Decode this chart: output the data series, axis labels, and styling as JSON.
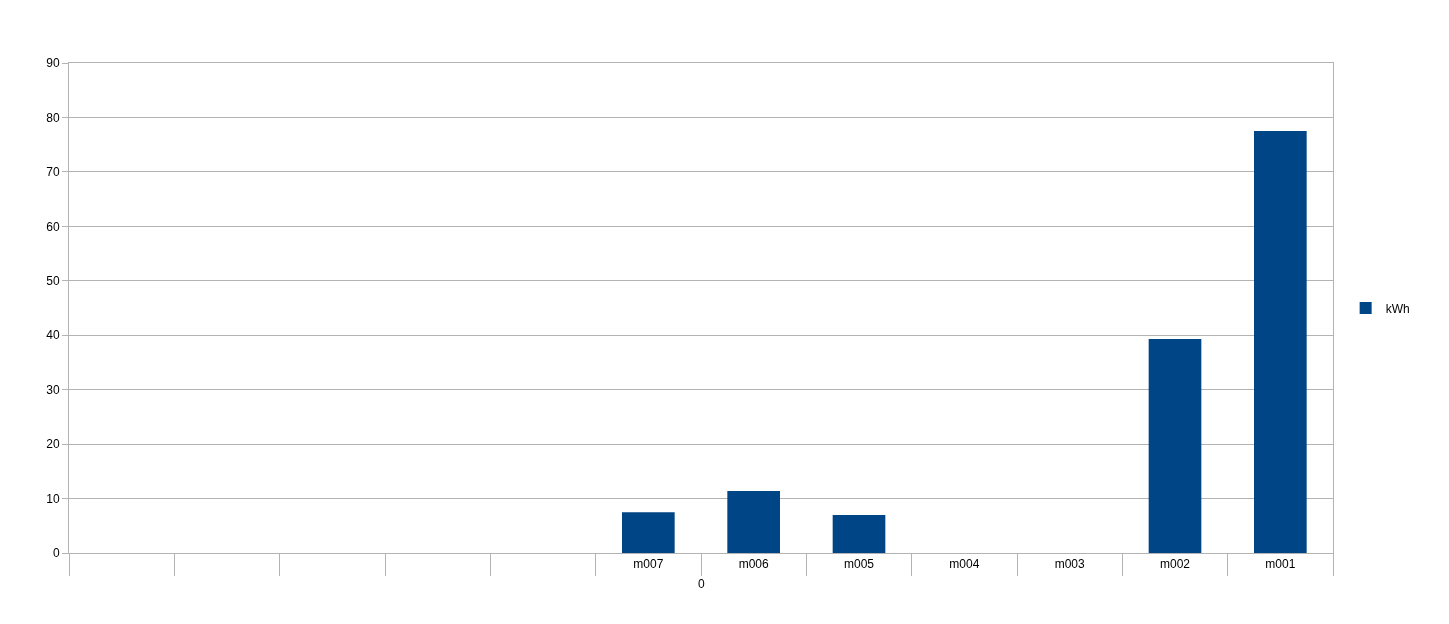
{
  "chart_data": {
    "type": "bar",
    "categories": [
      null,
      null,
      null,
      null,
      null,
      "m007",
      "m006",
      "m005",
      "m004",
      "m003",
      "m002",
      "m001"
    ],
    "series": [
      {
        "name": "kWh",
        "color": "#004586",
        "values": [
          null,
          null,
          null,
          null,
          null,
          7.5,
          11.4,
          7.0,
          0,
          0,
          39.3,
          77.5
        ]
      }
    ],
    "ylim": [
      0,
      90
    ],
    "yticks": [
      0,
      10,
      20,
      30,
      40,
      50,
      60,
      70,
      80,
      90
    ],
    "grid": "y",
    "legend": "right",
    "annotations": [
      "0"
    ]
  }
}
